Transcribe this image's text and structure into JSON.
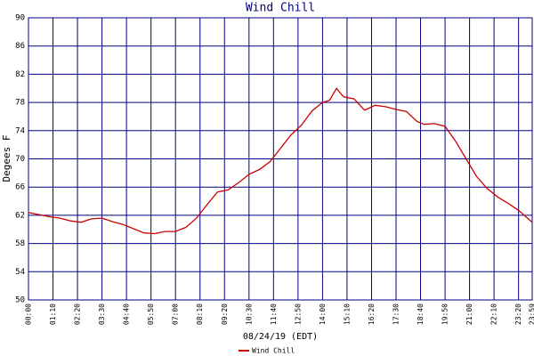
{
  "chart_data": {
    "type": "line",
    "title": "Wind Chill",
    "y_label": "Degees F",
    "x_label": "08/24/19 (EDT)",
    "x": [
      0,
      30,
      60,
      90,
      120,
      150,
      180,
      210,
      240,
      270,
      300,
      330,
      360,
      390,
      420,
      450,
      480,
      510,
      540,
      570,
      600,
      630,
      660,
      690,
      720,
      750,
      780,
      810,
      840,
      860,
      880,
      900,
      930,
      960,
      990,
      1020,
      1050,
      1080,
      1110,
      1130,
      1160,
      1190,
      1220,
      1250,
      1280,
      1310,
      1340,
      1370,
      1400,
      1439
    ],
    "series": [
      {
        "name": "Wind Chill",
        "color": "#cc0000",
        "values": [
          62.4,
          62.1,
          61.8,
          61.6,
          61.2,
          61.0,
          61.5,
          61.6,
          61.1,
          60.7,
          60.1,
          59.5,
          59.4,
          59.7,
          59.7,
          60.3,
          61.6,
          63.5,
          65.3,
          65.6,
          66.6,
          67.8,
          68.5,
          69.6,
          71.5,
          73.4,
          74.8,
          76.8,
          78.0,
          78.3,
          80.0,
          78.8,
          78.5,
          76.9,
          77.6,
          77.4,
          77.0,
          76.7,
          75.3,
          74.9,
          75.0,
          74.6,
          72.5,
          70.0,
          67.5,
          65.8,
          64.6,
          63.7,
          62.7,
          61.0
        ]
      }
    ],
    "xlim": [
      0,
      1439
    ],
    "xticks": [
      {
        "value": 0,
        "label": "00:00"
      },
      {
        "value": 70,
        "label": "01:10"
      },
      {
        "value": 140,
        "label": "02:20"
      },
      {
        "value": 210,
        "label": "03:30"
      },
      {
        "value": 280,
        "label": "04:40"
      },
      {
        "value": 350,
        "label": "05:50"
      },
      {
        "value": 420,
        "label": "07:00"
      },
      {
        "value": 490,
        "label": "08:10"
      },
      {
        "value": 560,
        "label": "09:20"
      },
      {
        "value": 630,
        "label": "10:30"
      },
      {
        "value": 700,
        "label": "11:40"
      },
      {
        "value": 770,
        "label": "12:50"
      },
      {
        "value": 840,
        "label": "14:00"
      },
      {
        "value": 910,
        "label": "15:10"
      },
      {
        "value": 980,
        "label": "16:20"
      },
      {
        "value": 1050,
        "label": "17:30"
      },
      {
        "value": 1120,
        "label": "18:40"
      },
      {
        "value": 1190,
        "label": "19:50"
      },
      {
        "value": 1260,
        "label": "21:00"
      },
      {
        "value": 1330,
        "label": "22:10"
      },
      {
        "value": 1400,
        "label": "23:20"
      },
      {
        "value": 1439,
        "label": "23:59"
      }
    ],
    "ylim": [
      50,
      90
    ],
    "yticks": [
      50,
      54,
      58,
      62,
      66,
      70,
      74,
      78,
      82,
      86,
      90
    ],
    "grid": true
  }
}
